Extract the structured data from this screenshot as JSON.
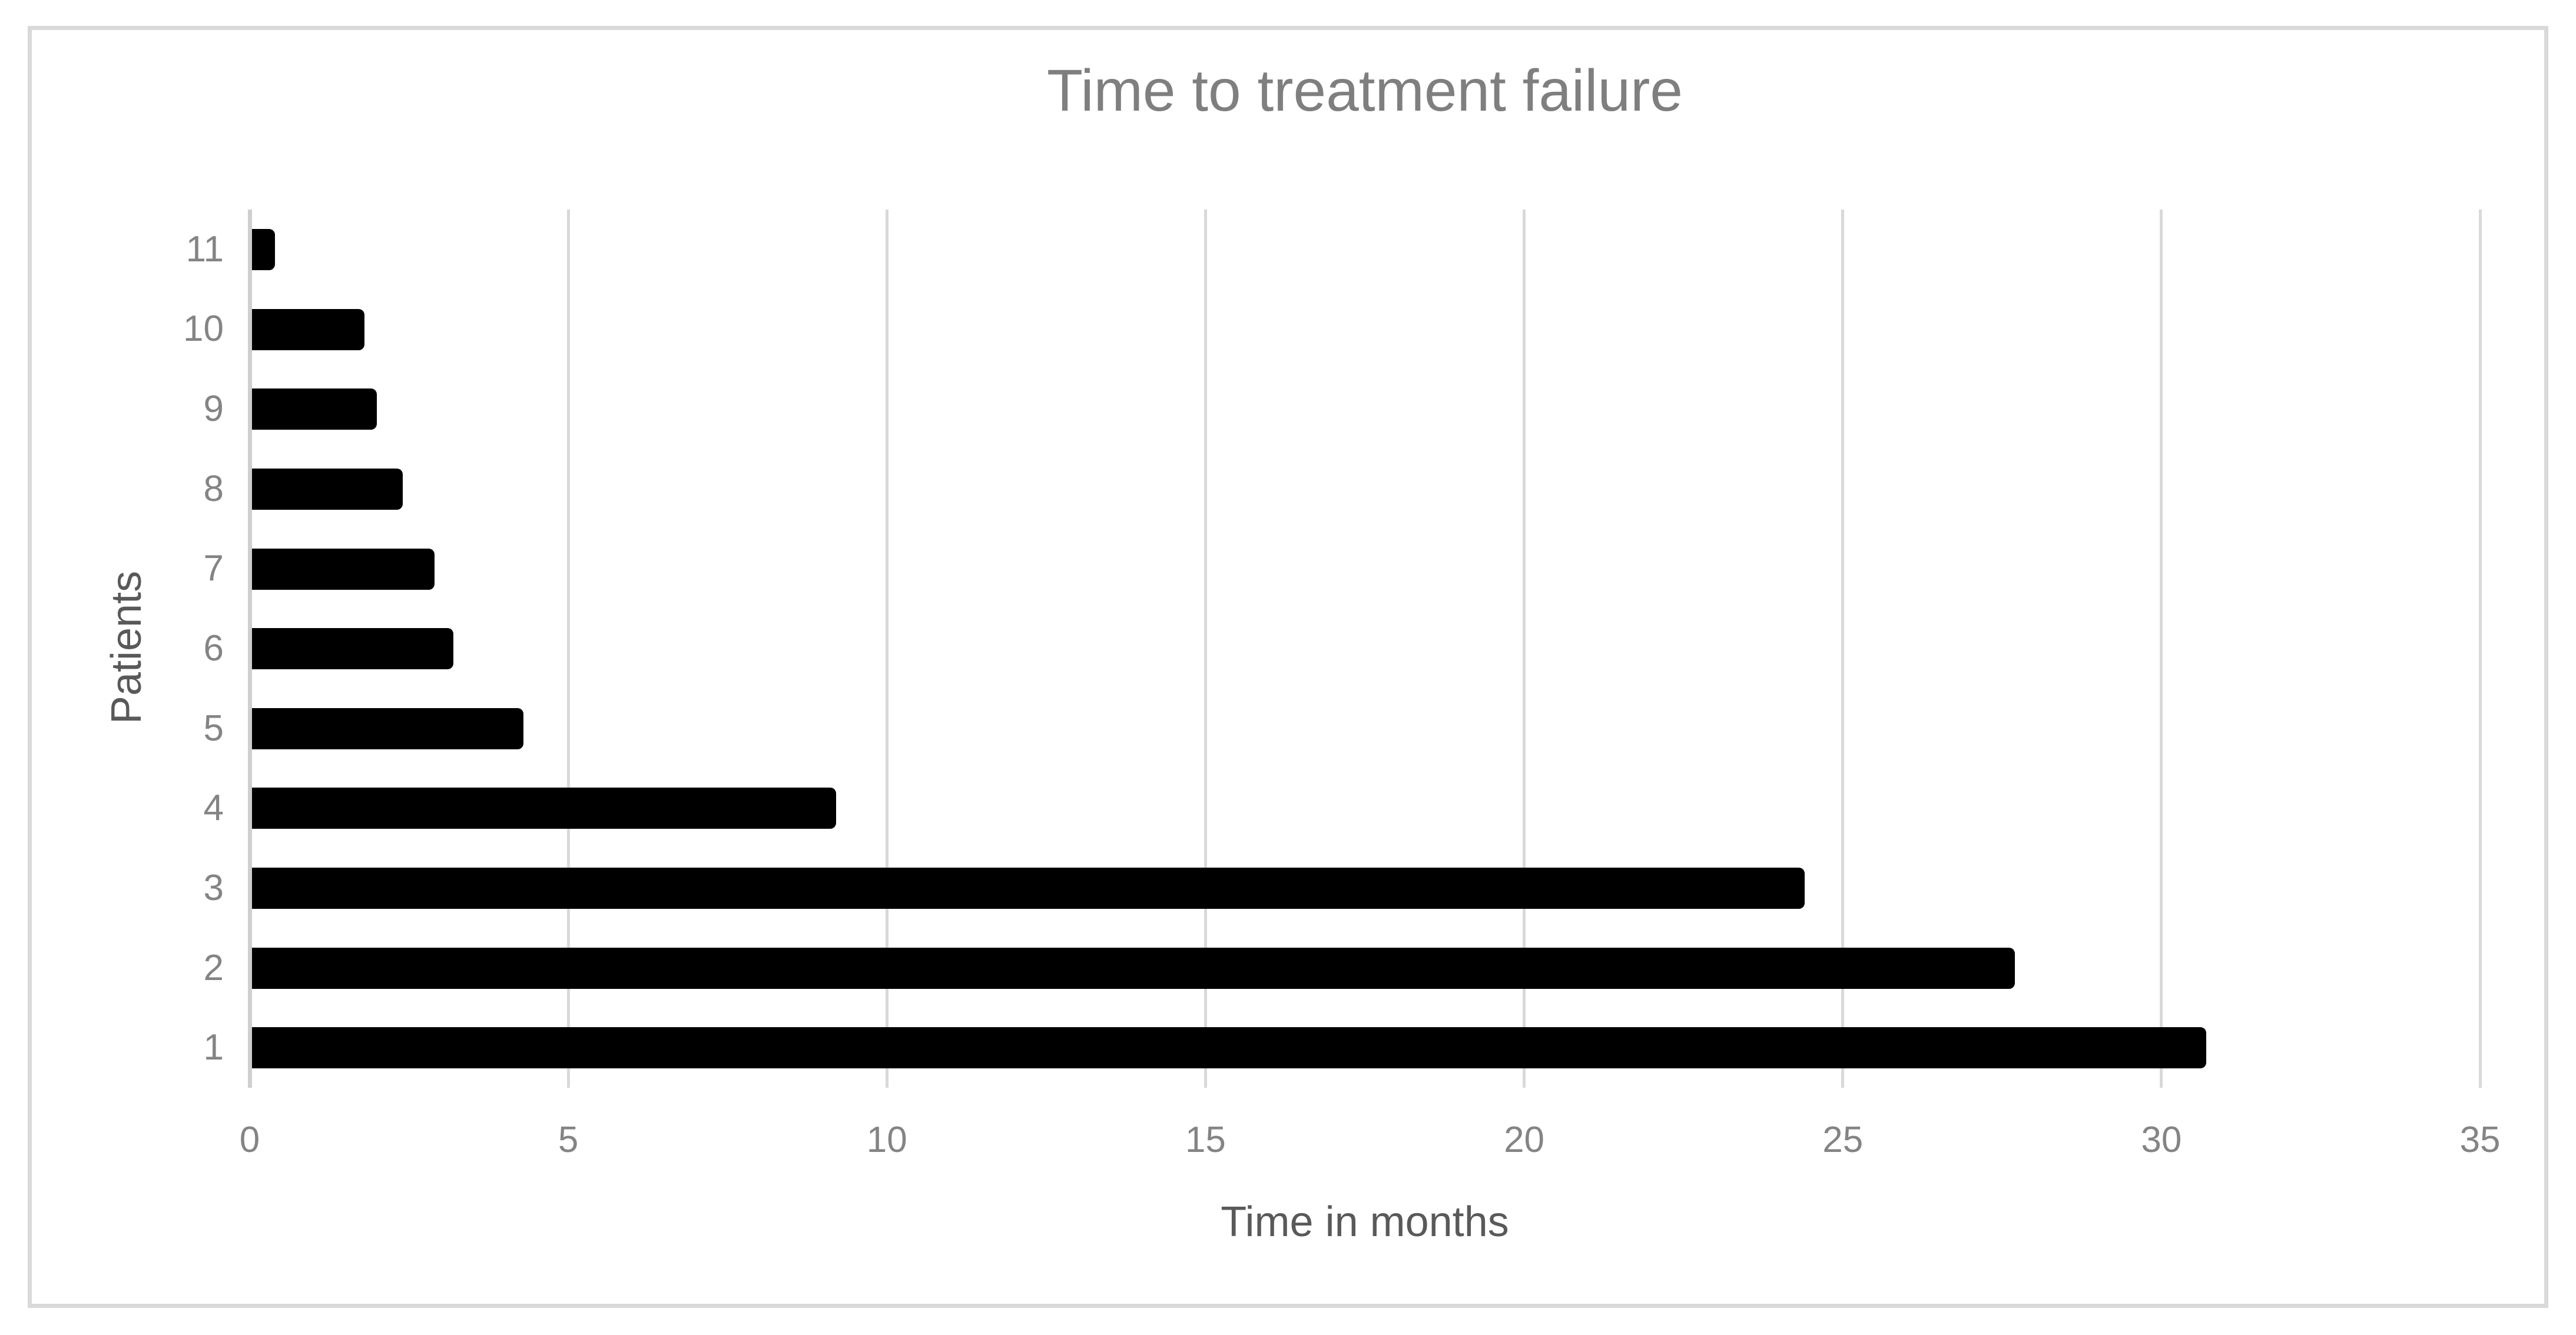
{
  "chart_data": {
    "type": "bar",
    "orientation": "horizontal",
    "title": "Time to treatment failure",
    "xlabel": "Time in months",
    "ylabel": "Patients",
    "categories": [
      "11",
      "10",
      "9",
      "8",
      "7",
      "6",
      "5",
      "4",
      "3",
      "2",
      "1"
    ],
    "values": [
      0.4,
      1.8,
      2.0,
      2.4,
      2.9,
      3.2,
      4.3,
      9.2,
      24.4,
      27.7,
      30.7
    ],
    "series": [
      {
        "name": "Time to treatment failure (months)",
        "points": [
          {
            "patient": "1",
            "months": 30.7
          },
          {
            "patient": "2",
            "months": 27.7
          },
          {
            "patient": "3",
            "months": 24.4
          },
          {
            "patient": "4",
            "months": 9.2
          },
          {
            "patient": "5",
            "months": 4.3
          },
          {
            "patient": "6",
            "months": 3.2
          },
          {
            "patient": "7",
            "months": 2.9
          },
          {
            "patient": "8",
            "months": 2.4
          },
          {
            "patient": "9",
            "months": 2.0
          },
          {
            "patient": "10",
            "months": 1.8
          },
          {
            "patient": "11",
            "months": 0.4
          }
        ]
      }
    ],
    "xlim": [
      0,
      35
    ],
    "xticks": [
      "0",
      "5",
      "10",
      "15",
      "20",
      "25",
      "30",
      "35"
    ],
    "grid": "vertical-only",
    "legend": "none"
  },
  "colors": {
    "bar": "#000000",
    "gridline": "#d9d9d9",
    "axis_line": "#cfcfcf",
    "frame_border": "#d9d9d9",
    "title_text": "#7f7f7f",
    "tick_text": "#848484",
    "axis_title_text": "#595959",
    "background": "#ffffff"
  }
}
